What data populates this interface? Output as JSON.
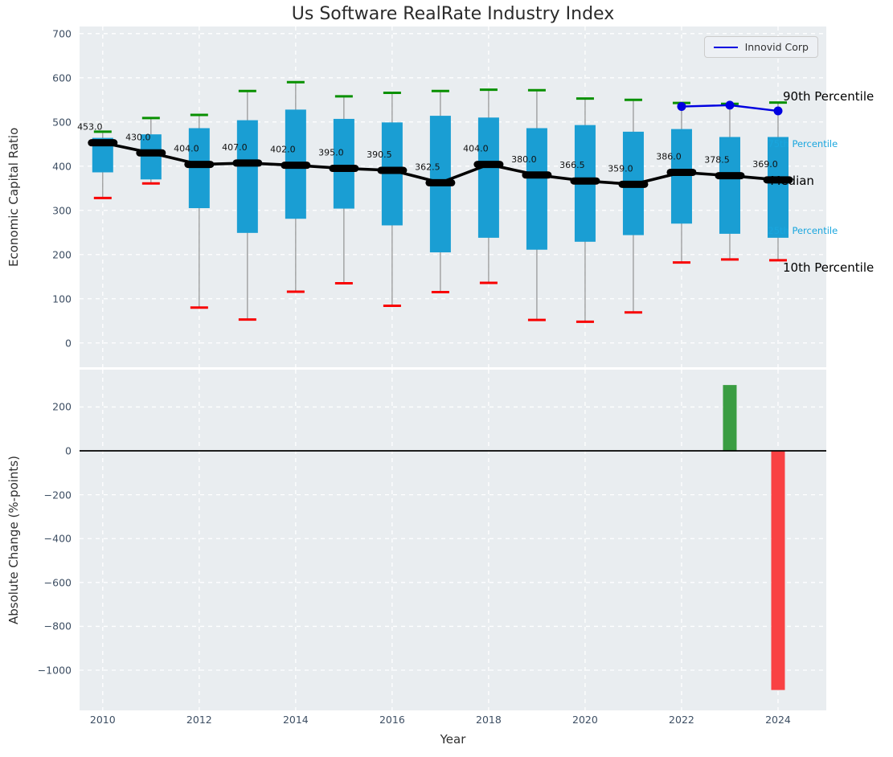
{
  "ui": {
    "title": "Us Software RealRate Industry Index",
    "xlabel": "Year",
    "top_ylabel": "Economic Capital Ratio",
    "bottom_ylabel": "Absolute Change (%-points)",
    "legend_label": "Innovid Corp"
  },
  "colors": {
    "panel_bg": "#e9edf0",
    "grid": "#ffffff",
    "tick_text": "#3d4e63",
    "box_fill": "#1a9ed3",
    "whisker": "#8a8a8a",
    "median": "#000000",
    "p90_cap": "#089000",
    "p10_cap": "#f80000",
    "innovid_line": "#0000e0",
    "bar_positive": "#3a9d42",
    "bar_negative": "#f94143",
    "annotation_percentile": "#19a6de",
    "annotation_main": "#000000",
    "zero_line": "#000000"
  },
  "chart_data": [
    {
      "type": "boxplot",
      "title": "Us Software RealRate Industry Index",
      "xlabel": "Year",
      "ylabel": "Economic Capital Ratio",
      "ylim": [
        -55,
        716
      ],
      "xlim": [
        2009.52,
        2025.0
      ],
      "grid": true,
      "yticks": [
        {
          "v": 0,
          "label": "0"
        },
        {
          "v": 100,
          "label": "100"
        },
        {
          "v": 200,
          "label": "200"
        },
        {
          "v": 300,
          "label": "300"
        },
        {
          "v": 400,
          "label": "400"
        },
        {
          "v": 500,
          "label": "500"
        },
        {
          "v": 600,
          "label": "600"
        },
        {
          "v": 700,
          "label": "700"
        }
      ],
      "years": [
        2010,
        2011,
        2012,
        2013,
        2014,
        2015,
        2016,
        2017,
        2018,
        2019,
        2020,
        2021,
        2022,
        2023,
        2024
      ],
      "median": [
        453.0,
        430.0,
        404.0,
        407.0,
        402.0,
        395.0,
        390.5,
        362.5,
        404.0,
        380.0,
        366.5,
        359.0,
        386.0,
        378.5,
        369.0
      ],
      "median_labels": [
        "453.0",
        "430.0",
        "404.0",
        "407.0",
        "402.0",
        "395.0",
        "390.5",
        "362.5",
        "404.0",
        "380.0",
        "366.5",
        "359.0",
        "386.0",
        "378.5",
        "369.0"
      ],
      "p90": [
        478,
        509,
        516,
        570,
        590,
        558,
        566,
        570,
        573,
        572,
        553,
        550,
        543,
        541,
        544
      ],
      "p75": [
        464,
        472,
        486,
        504,
        528,
        507,
        499,
        514,
        510,
        486,
        493,
        478,
        484,
        466,
        466
      ],
      "p25": [
        386,
        370,
        305,
        249,
        281,
        304,
        266,
        205,
        238,
        211,
        229,
        244,
        270,
        247,
        238
      ],
      "p10": [
        328,
        361,
        80,
        53,
        116,
        135,
        84,
        115,
        136,
        52,
        48,
        69,
        182,
        189,
        187
      ],
      "series": [
        {
          "name": "Innovid Corp",
          "x": [
            2022,
            2023,
            2024
          ],
          "values": [
            535,
            538,
            525
          ]
        }
      ],
      "legend_position": "upper right",
      "percentile_annotations": [
        {
          "text": "90th Percentile",
          "x": 2024.1,
          "y": 558,
          "style": "black"
        },
        {
          "text": "75th Percentile",
          "x": 2023.79,
          "y": 451,
          "style": "cyan"
        },
        {
          "text": "Median",
          "x": 2023.84,
          "y": 367,
          "style": "black"
        },
        {
          "text": "25th Percentile",
          "x": 2023.79,
          "y": 255,
          "style": "cyan"
        },
        {
          "text": "10th Percentile",
          "x": 2024.1,
          "y": 171,
          "style": "black"
        }
      ]
    },
    {
      "type": "bar",
      "xlabel": "Year",
      "ylabel": "Absolute Change (%-points)",
      "ylim": [
        -1183,
        370
      ],
      "xlim": [
        2009.52,
        2025.0
      ],
      "grid": true,
      "zero_line": true,
      "yticks": [
        {
          "v": 200,
          "label": "200"
        },
        {
          "v": 0,
          "label": "0"
        },
        {
          "v": -200,
          "label": "−200"
        },
        {
          "v": -400,
          "label": "−400"
        },
        {
          "v": -600,
          "label": "−600"
        },
        {
          "v": -800,
          "label": "−800"
        },
        {
          "v": -1000,
          "label": "−1000"
        }
      ],
      "bars": [
        {
          "year": 2023,
          "value": 300,
          "direction": "positive"
        },
        {
          "year": 2024,
          "value": -1090,
          "direction": "negative"
        }
      ]
    }
  ],
  "x_axis": {
    "ticks": [
      {
        "v": 2010,
        "label": "2010"
      },
      {
        "v": 2012,
        "label": "2012"
      },
      {
        "v": 2014,
        "label": "2014"
      },
      {
        "v": 2016,
        "label": "2016"
      },
      {
        "v": 2018,
        "label": "2018"
      },
      {
        "v": 2020,
        "label": "2020"
      },
      {
        "v": 2022,
        "label": "2022"
      },
      {
        "v": 2024,
        "label": "2024"
      }
    ]
  }
}
